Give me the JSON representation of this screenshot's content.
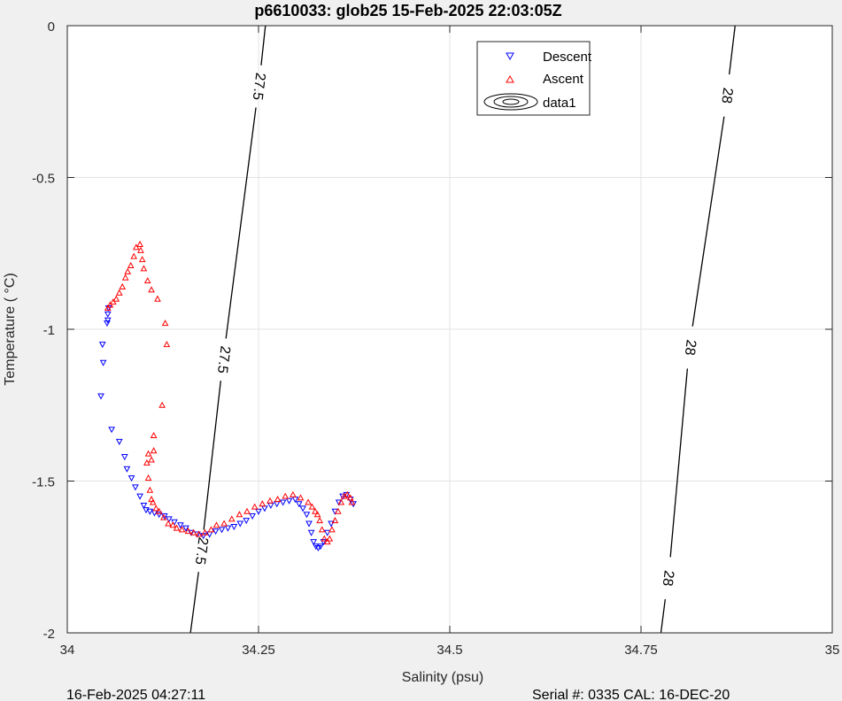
{
  "chart_data": {
    "type": "scatter",
    "title": "p6610033: glob25 15-Feb-2025 22:03:05Z",
    "xlabel": "Salinity (psu)",
    "ylabel": "Temperature (   °C)",
    "xlim": [
      34,
      35
    ],
    "ylim": [
      -2,
      0
    ],
    "xticks": [
      34,
      34.25,
      34.5,
      34.75,
      35
    ],
    "xtick_labels": [
      "34",
      "34.25",
      "34.5",
      "34.75",
      "35"
    ],
    "yticks": [
      0,
      -0.5,
      -1,
      -1.5,
      -2
    ],
    "ytick_labels": [
      "0",
      "-0.5",
      "-1",
      "-1.5",
      "-2"
    ],
    "grid": true,
    "legend": {
      "location": "top-right",
      "entries": [
        "Descent",
        "Ascent",
        "data1"
      ]
    },
    "series": [
      {
        "name": "Descent",
        "color": "#0000ff",
        "marker": "triangle-down",
        "points": [
          [
            34.053,
            -0.95
          ],
          [
            34.054,
            -0.93
          ],
          [
            34.053,
            -0.97
          ],
          [
            34.052,
            -0.98
          ],
          [
            34.046,
            -1.05
          ],
          [
            34.047,
            -1.11
          ],
          [
            34.044,
            -1.22
          ],
          [
            34.058,
            -1.33
          ],
          [
            34.068,
            -1.37
          ],
          [
            34.075,
            -1.42
          ],
          [
            34.078,
            -1.46
          ],
          [
            34.084,
            -1.49
          ],
          [
            34.089,
            -1.52
          ],
          [
            34.095,
            -1.55
          ],
          [
            34.1,
            -1.58
          ],
          [
            34.103,
            -1.595
          ],
          [
            34.108,
            -1.6
          ],
          [
            34.114,
            -1.605
          ],
          [
            34.12,
            -1.61
          ],
          [
            34.127,
            -1.615
          ],
          [
            34.133,
            -1.625
          ],
          [
            34.14,
            -1.635
          ],
          [
            34.148,
            -1.645
          ],
          [
            34.155,
            -1.655
          ],
          [
            34.162,
            -1.67
          ],
          [
            34.17,
            -1.675
          ],
          [
            34.178,
            -1.68
          ],
          [
            34.186,
            -1.675
          ],
          [
            34.194,
            -1.665
          ],
          [
            34.202,
            -1.66
          ],
          [
            34.21,
            -1.655
          ],
          [
            34.218,
            -1.65
          ],
          [
            34.226,
            -1.64
          ],
          [
            34.234,
            -1.63
          ],
          [
            34.242,
            -1.615
          ],
          [
            34.25,
            -1.6
          ],
          [
            34.258,
            -1.59
          ],
          [
            34.266,
            -1.58
          ],
          [
            34.274,
            -1.575
          ],
          [
            34.282,
            -1.57
          ],
          [
            34.29,
            -1.565
          ],
          [
            34.298,
            -1.56
          ],
          [
            34.303,
            -1.575
          ],
          [
            34.308,
            -1.59
          ],
          [
            34.313,
            -1.61
          ],
          [
            34.316,
            -1.64
          ],
          [
            34.319,
            -1.67
          ],
          [
            34.322,
            -1.7
          ],
          [
            34.325,
            -1.715
          ],
          [
            34.328,
            -1.72
          ],
          [
            34.331,
            -1.715
          ],
          [
            34.335,
            -1.7
          ],
          [
            34.34,
            -1.67
          ],
          [
            34.345,
            -1.64
          ],
          [
            34.35,
            -1.6
          ],
          [
            34.355,
            -1.57
          ],
          [
            34.36,
            -1.55
          ],
          [
            34.365,
            -1.545
          ],
          [
            34.37,
            -1.56
          ],
          [
            34.374,
            -1.575
          ]
        ]
      },
      {
        "name": "Ascent",
        "color": "#ff0000",
        "marker": "triangle-up",
        "points": [
          [
            34.372,
            -1.57
          ],
          [
            34.37,
            -1.555
          ],
          [
            34.366,
            -1.545
          ],
          [
            34.362,
            -1.55
          ],
          [
            34.358,
            -1.57
          ],
          [
            34.354,
            -1.6
          ],
          [
            34.35,
            -1.63
          ],
          [
            34.346,
            -1.66
          ],
          [
            34.343,
            -1.69
          ],
          [
            34.34,
            -1.7
          ],
          [
            34.336,
            -1.69
          ],
          [
            34.333,
            -1.66
          ],
          [
            34.33,
            -1.63
          ],
          [
            34.327,
            -1.61
          ],
          [
            34.324,
            -1.6
          ],
          [
            34.32,
            -1.585
          ],
          [
            34.315,
            -1.57
          ],
          [
            34.305,
            -1.555
          ],
          [
            34.295,
            -1.545
          ],
          [
            34.285,
            -1.55
          ],
          [
            34.275,
            -1.56
          ],
          [
            34.265,
            -1.565
          ],
          [
            34.255,
            -1.575
          ],
          [
            34.245,
            -1.585
          ],
          [
            34.235,
            -1.6
          ],
          [
            34.225,
            -1.61
          ],
          [
            34.215,
            -1.625
          ],
          [
            34.205,
            -1.64
          ],
          [
            34.195,
            -1.645
          ],
          [
            34.188,
            -1.66
          ],
          [
            34.18,
            -1.67
          ],
          [
            34.172,
            -1.675
          ],
          [
            34.165,
            -1.67
          ],
          [
            34.158,
            -1.665
          ],
          [
            34.15,
            -1.66
          ],
          [
            34.143,
            -1.655
          ],
          [
            34.138,
            -1.645
          ],
          [
            34.132,
            -1.64
          ],
          [
            34.126,
            -1.62
          ],
          [
            34.12,
            -1.6
          ],
          [
            34.116,
            -1.59
          ],
          [
            34.112,
            -1.57
          ],
          [
            34.11,
            -1.56
          ],
          [
            34.108,
            -1.53
          ],
          [
            34.106,
            -1.49
          ],
          [
            34.104,
            -1.44
          ],
          [
            34.11,
            -1.43
          ],
          [
            34.106,
            -1.41
          ],
          [
            34.113,
            -1.4
          ],
          [
            34.113,
            -1.35
          ],
          [
            34.124,
            -1.25
          ],
          [
            34.13,
            -1.05
          ],
          [
            34.128,
            -0.98
          ],
          [
            34.118,
            -0.9
          ],
          [
            34.11,
            -0.87
          ],
          [
            34.105,
            -0.84
          ],
          [
            34.1,
            -0.8
          ],
          [
            34.098,
            -0.77
          ],
          [
            34.096,
            -0.74
          ],
          [
            34.095,
            -0.72
          ],
          [
            34.09,
            -0.73
          ],
          [
            34.087,
            -0.76
          ],
          [
            34.083,
            -0.79
          ],
          [
            34.079,
            -0.81
          ],
          [
            34.076,
            -0.83
          ],
          [
            34.072,
            -0.86
          ],
          [
            34.068,
            -0.88
          ],
          [
            34.064,
            -0.9
          ],
          [
            34.06,
            -0.91
          ],
          [
            34.056,
            -0.92
          ],
          [
            34.053,
            -0.93
          ]
        ]
      }
    ],
    "contours": [
      {
        "level": "27.5",
        "line": [
          [
            34.161,
            -2
          ],
          [
            34.259,
            0
          ]
        ],
        "label_positions": [
          [
            34.175,
            -1.73
          ],
          [
            34.204,
            -1.1
          ],
          [
            34.25,
            -0.2
          ]
        ]
      },
      {
        "level": "28",
        "line": [
          [
            34.776,
            -2
          ],
          [
            34.873,
            0
          ]
        ],
        "label_positions": [
          [
            34.785,
            -1.82
          ],
          [
            34.814,
            -1.06
          ],
          [
            34.862,
            -0.23
          ]
        ]
      }
    ],
    "footer_left": "16-Feb-2025 04:27:11",
    "footer_right": "Serial #: 0335  CAL: 16-DEC-20"
  }
}
